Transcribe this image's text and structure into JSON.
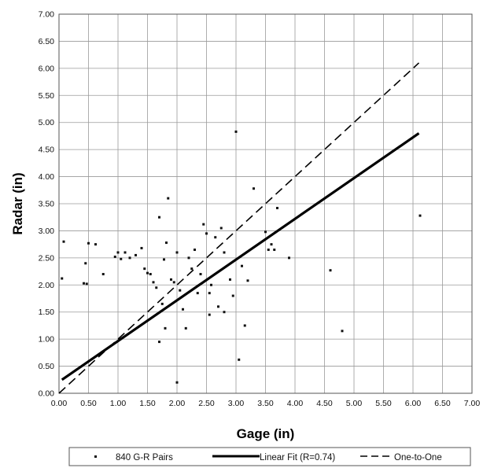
{
  "chart_data": {
    "type": "scatter",
    "xlabel": "Gage (in)",
    "ylabel": "Radar (in)",
    "xlim": [
      0,
      7
    ],
    "ylim": [
      0,
      7
    ],
    "x_ticks": [
      "0.00",
      "0.50",
      "1.00",
      "1.50",
      "2.00",
      "2.50",
      "3.00",
      "3.50",
      "4.00",
      "4.50",
      "5.00",
      "5.50",
      "6.00",
      "6.50",
      "7.00"
    ],
    "y_ticks": [
      "0.00",
      "0.50",
      "1.00",
      "1.50",
      "2.00",
      "2.50",
      "3.00",
      "3.50",
      "4.00",
      "4.50",
      "5.00",
      "5.50",
      "6.00",
      "6.50",
      "7.00"
    ],
    "grid": true,
    "legend_position": "bottom",
    "series": [
      {
        "name": "840 G-R Pairs",
        "style": "points",
        "points": [
          [
            0.05,
            2.12
          ],
          [
            0.08,
            2.8
          ],
          [
            0.5,
            2.77
          ],
          [
            0.45,
            2.4
          ],
          [
            0.42,
            2.03
          ],
          [
            0.47,
            2.02
          ],
          [
            0.62,
            2.75
          ],
          [
            0.75,
            2.2
          ],
          [
            0.95,
            2.52
          ],
          [
            1.0,
            2.6
          ],
          [
            1.05,
            2.48
          ],
          [
            1.12,
            2.6
          ],
          [
            1.2,
            2.5
          ],
          [
            1.3,
            2.55
          ],
          [
            1.4,
            2.68
          ],
          [
            1.45,
            2.3
          ],
          [
            1.5,
            2.22
          ],
          [
            1.55,
            2.2
          ],
          [
            1.6,
            2.05
          ],
          [
            1.65,
            1.95
          ],
          [
            1.7,
            3.25
          ],
          [
            1.78,
            2.47
          ],
          [
            1.82,
            2.78
          ],
          [
            1.85,
            3.6
          ],
          [
            1.9,
            2.1
          ],
          [
            1.95,
            2.05
          ],
          [
            2.0,
            2.6
          ],
          [
            2.05,
            1.9
          ],
          [
            2.1,
            1.55
          ],
          [
            2.15,
            1.2
          ],
          [
            2.2,
            2.5
          ],
          [
            2.25,
            2.3
          ],
          [
            2.3,
            2.65
          ],
          [
            2.35,
            1.85
          ],
          [
            2.4,
            2.2
          ],
          [
            2.45,
            3.12
          ],
          [
            2.5,
            2.95
          ],
          [
            2.55,
            1.45
          ],
          [
            2.58,
            2.0
          ],
          [
            2.65,
            2.88
          ],
          [
            2.7,
            1.6
          ],
          [
            2.75,
            3.05
          ],
          [
            2.8,
            2.6
          ],
          [
            2.9,
            2.1
          ],
          [
            2.95,
            1.8
          ],
          [
            3.0,
            4.83
          ],
          [
            3.05,
            0.62
          ],
          [
            3.1,
            2.35
          ],
          [
            3.15,
            1.25
          ],
          [
            3.2,
            2.08
          ],
          [
            3.3,
            3.78
          ],
          [
            3.5,
            2.98
          ],
          [
            3.55,
            2.65
          ],
          [
            3.6,
            2.75
          ],
          [
            3.65,
            2.65
          ],
          [
            3.7,
            3.42
          ],
          [
            3.9,
            2.5
          ],
          [
            4.6,
            2.27
          ],
          [
            4.8,
            1.15
          ],
          [
            6.12,
            3.28
          ],
          [
            2.0,
            0.2
          ],
          [
            1.7,
            0.95
          ],
          [
            1.8,
            1.2
          ],
          [
            1.75,
            1.65
          ],
          [
            2.55,
            1.85
          ],
          [
            2.8,
            1.5
          ]
        ]
      },
      {
        "name": "Linear Fit (R=0.74)",
        "style": "solid-line",
        "points": [
          [
            0.05,
            0.25
          ],
          [
            6.1,
            4.8
          ]
        ]
      },
      {
        "name": "One-to-One",
        "style": "dashed-line",
        "points": [
          [
            0.0,
            0.0
          ],
          [
            6.1,
            6.1
          ]
        ]
      }
    ],
    "colors": {
      "markers": "#111111",
      "lines": "#000000",
      "grid": "#9a9a9a"
    }
  }
}
